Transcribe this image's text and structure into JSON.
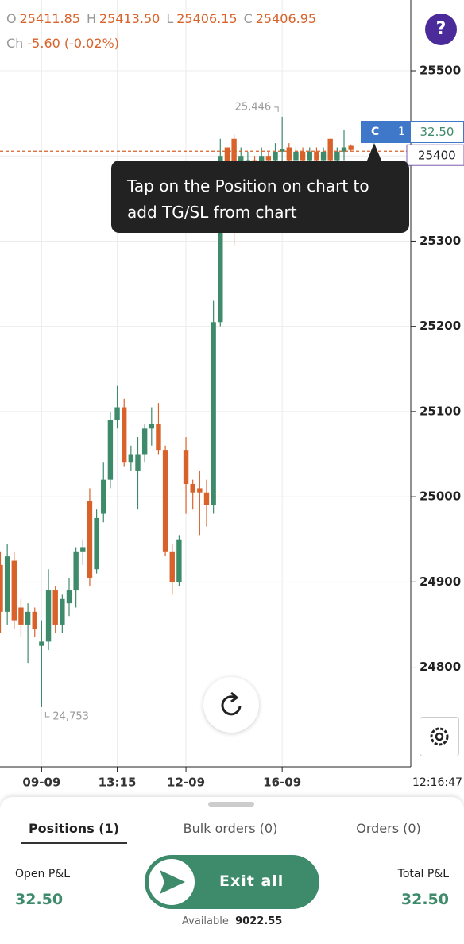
{
  "header": {
    "ohlc": [
      {
        "label": "O",
        "value": "25411.85"
      },
      {
        "label": "H",
        "value": "25413.50"
      },
      {
        "label": "L",
        "value": "25406.15"
      },
      {
        "label": "C",
        "value": "25406.95"
      }
    ],
    "change_label": "Ch",
    "change": "-5.60 (-0.02%)",
    "help": "?"
  },
  "chart_data": {
    "type": "candlestick",
    "up_color": "#3d8b6b",
    "down_color": "#d9622b",
    "open": [
      24920,
      24865,
      24925,
      24870,
      24850,
      24865,
      24825,
      24830,
      24890,
      24850,
      24875,
      24890,
      24935,
      24995,
      24915,
      24980,
      25020,
      25090,
      25105,
      25040,
      25030,
      25050,
      25080,
      25085,
      25055,
      24935,
      24900,
      25055,
      25015,
      25010,
      25005,
      24990,
      25205,
      25410,
      25420,
      25390,
      25385,
      25395,
      25390,
      25400,
      25395,
      25405,
      25410,
      25395,
      25405,
      25395,
      25405,
      25395,
      25420,
      25395,
      25405,
      25411.85
    ],
    "high": [
      24935,
      24945,
      24935,
      24880,
      24875,
      24870,
      24855,
      24915,
      24895,
      24885,
      24905,
      24940,
      24950,
      25010,
      24985,
      25040,
      25100,
      25130,
      25115,
      25060,
      25070,
      25085,
      25105,
      25110,
      25060,
      24945,
      24955,
      25070,
      25020,
      25030,
      25020,
      25230,
      25420,
      25410,
      25425,
      25410,
      25405,
      25400,
      25410,
      25405,
      25415,
      25446,
      25415,
      25410,
      25410,
      25410,
      25410,
      25410,
      25420,
      25410,
      25430,
      25413.5
    ],
    "low": [
      24840,
      24850,
      24845,
      24835,
      24805,
      24835,
      24753,
      24820,
      24840,
      24840,
      24860,
      24870,
      24920,
      24895,
      24910,
      24970,
      25010,
      25080,
      25035,
      25030,
      24985,
      25040,
      25060,
      25050,
      24930,
      24885,
      24895,
      24980,
      24985,
      24955,
      24965,
      24980,
      25200,
      25320,
      25295,
      25375,
      25380,
      25380,
      25385,
      25385,
      25390,
      25390,
      25385,
      25395,
      25390,
      25390,
      25390,
      25390,
      25390,
      25390,
      25395,
      25406.15
    ],
    "close": [
      24865,
      24930,
      24855,
      24850,
      24865,
      24845,
      24830,
      24890,
      24850,
      24880,
      24890,
      24935,
      24940,
      24905,
      24975,
      25020,
      25090,
      25105,
      25040,
      25050,
      25050,
      25080,
      25085,
      25055,
      24935,
      24900,
      24950,
      25015,
      25005,
      25005,
      24990,
      25205,
      25400,
      25350,
      25380,
      25400,
      25395,
      25390,
      25400,
      25395,
      25405,
      25408,
      25395,
      25405,
      25395,
      25405,
      25395,
      25405,
      25395,
      25405,
      25410,
      25406.95
    ],
    "ylim": [
      24683,
      25583
    ],
    "yticks": [
      24800,
      24900,
      25000,
      25100,
      25200,
      25300,
      25400,
      25500
    ],
    "xticks": [
      {
        "value": 6,
        "label": "09-09"
      },
      {
        "value": 17,
        "label": "13:15"
      },
      {
        "value": 27,
        "label": "12-09"
      },
      {
        "value": 41,
        "label": "16-09"
      }
    ],
    "annotations": [
      {
        "x": 41,
        "value": 25446,
        "text": "25,446"
      },
      {
        "x": 6,
        "value": 24753,
        "text": "24,753"
      }
    ],
    "time": "12:16:47",
    "position_line": {
      "value": 25400,
      "label": "25400"
    },
    "position_tag": {
      "side": "C",
      "qty": "1",
      "pnl": "32.50"
    },
    "tooltip": [
      "Tap on the Position on chart to",
      "add TG/SL from chart"
    ]
  },
  "panel": {
    "tabs": [
      "Positions (1)",
      "Bulk orders (0)",
      "Orders (0)"
    ],
    "open_pnl": {
      "label": "Open P&L",
      "value": "32.50"
    },
    "exit": "Exit all",
    "available": {
      "label": "Available",
      "value": "9022.55"
    },
    "total_pnl": {
      "label": "Total P&L",
      "value": "32.50"
    }
  }
}
